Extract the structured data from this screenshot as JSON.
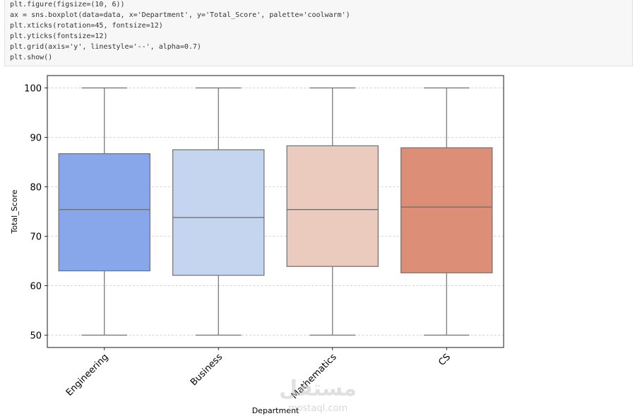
{
  "code": {
    "lines": [
      "plt.figure(figsize=(10, 6))",
      "ax = sns.boxplot(data=data, x='Department', y='Total_Score', palette='coolwarm')",
      "plt.xticks(rotation=45, fontsize=12)",
      "plt.yticks(fontsize=12)",
      "plt.grid(axis='y', linestyle='--', alpha=0.7)",
      "plt.show()"
    ]
  },
  "watermark": {
    "brand": "مستقل",
    "domain": "mostaql.com"
  },
  "chart_data": {
    "type": "box",
    "xlabel": "Department",
    "ylabel": "Total_Score",
    "ylim": [
      47.5,
      102.5
    ],
    "yticks": [
      50,
      60,
      70,
      80,
      90,
      100
    ],
    "grid": "y, dashed",
    "categories": [
      "Engineering",
      "Business",
      "Mathematics",
      "CS"
    ],
    "boxes": [
      {
        "category": "Engineering",
        "min": 50,
        "q1": 63.0,
        "median": 75.4,
        "q3": 86.7,
        "max": 100,
        "color": "#88a7ea"
      },
      {
        "category": "Business",
        "min": 50,
        "q1": 62.1,
        "median": 73.8,
        "q3": 87.5,
        "max": 100,
        "color": "#c5d5ef"
      },
      {
        "category": "Mathematics",
        "min": 50,
        "q1": 63.9,
        "median": 75.4,
        "q3": 88.3,
        "max": 100,
        "color": "#eacbbd"
      },
      {
        "category": "CS",
        "min": 50,
        "q1": 62.6,
        "median": 75.9,
        "q3": 87.9,
        "max": 100,
        "color": "#dc8f76"
      }
    ]
  }
}
